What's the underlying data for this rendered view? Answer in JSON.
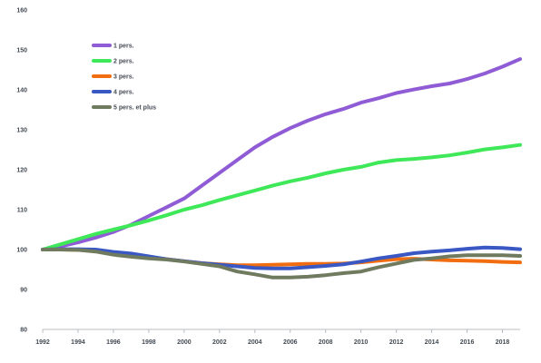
{
  "chart_data": {
    "type": "line",
    "title": "",
    "xlabel": "",
    "ylabel": "",
    "ylim": [
      80,
      160
    ],
    "yticks": [
      80,
      90,
      100,
      110,
      120,
      130,
      140,
      150,
      160
    ],
    "xlim": [
      1992,
      2019
    ],
    "xticks": [
      1992,
      1994,
      1996,
      1998,
      2000,
      2002,
      2004,
      2006,
      2008,
      2010,
      2012,
      2014,
      2016,
      2018
    ],
    "grid": false,
    "legend_position": "top-left",
    "x": [
      1992,
      1993,
      1994,
      1995,
      1996,
      1997,
      1998,
      1999,
      2000,
      2001,
      2002,
      2003,
      2004,
      2005,
      2006,
      2007,
      2008,
      2009,
      2010,
      2011,
      2012,
      2013,
      2014,
      2015,
      2016,
      2017,
      2018,
      2019
    ],
    "series": [
      {
        "name": "1 pers.",
        "color": "#8f5cd6",
        "values": [
          100,
          100.8,
          101.8,
          103,
          104.4,
          106.2,
          108.4,
          110.6,
          112.8,
          116,
          119.2,
          122.4,
          125.6,
          128.2,
          130.4,
          132.3,
          133.9,
          135.2,
          136.8,
          137.9,
          139.2,
          140.1,
          140.9,
          141.6,
          142.7,
          144.1,
          145.8,
          147.7
        ]
      },
      {
        "name": "2 pers.",
        "color": "#3fe858",
        "values": [
          100,
          101.3,
          102.6,
          103.9,
          105,
          106.1,
          107.3,
          108.6,
          110,
          111.1,
          112.4,
          113.6,
          114.8,
          116,
          117.1,
          118,
          119.1,
          120,
          120.7,
          121.8,
          122.4,
          122.7,
          123.1,
          123.6,
          124.3,
          125.1,
          125.6,
          126.2
        ]
      },
      {
        "name": "3 pers.",
        "color": "#f26d10",
        "values": [
          100,
          100,
          99.9,
          99.7,
          99.1,
          98.6,
          98.1,
          97.6,
          97.1,
          96.6,
          96.3,
          96.1,
          96.1,
          96.2,
          96.3,
          96.4,
          96.4,
          96.5,
          96.8,
          97.2,
          97.6,
          97.7,
          97.5,
          97.3,
          97.2,
          97.1,
          96.9,
          96.8
        ]
      },
      {
        "name": "4 pers.",
        "color": "#3a58c4",
        "values": [
          100,
          100.1,
          100.1,
          100,
          99.4,
          99,
          98.3,
          97.6,
          97.1,
          96.6,
          96.2,
          95.8,
          95.4,
          95.3,
          95.3,
          95.6,
          95.9,
          96.3,
          97,
          97.8,
          98.4,
          99.1,
          99.5,
          99.8,
          100.2,
          100.5,
          100.4,
          100.1
        ]
      },
      {
        "name": "5 pers. et plus",
        "color": "#6f7a5f",
        "values": [
          100,
          100,
          99.9,
          99.5,
          98.7,
          98.2,
          97.8,
          97.5,
          97,
          96.4,
          95.8,
          94.5,
          93.8,
          93,
          93,
          93.2,
          93.6,
          94.1,
          94.5,
          95.6,
          96.5,
          97.4,
          97.8,
          98.3,
          98.6,
          98.6,
          98.6,
          98.4
        ]
      }
    ]
  }
}
